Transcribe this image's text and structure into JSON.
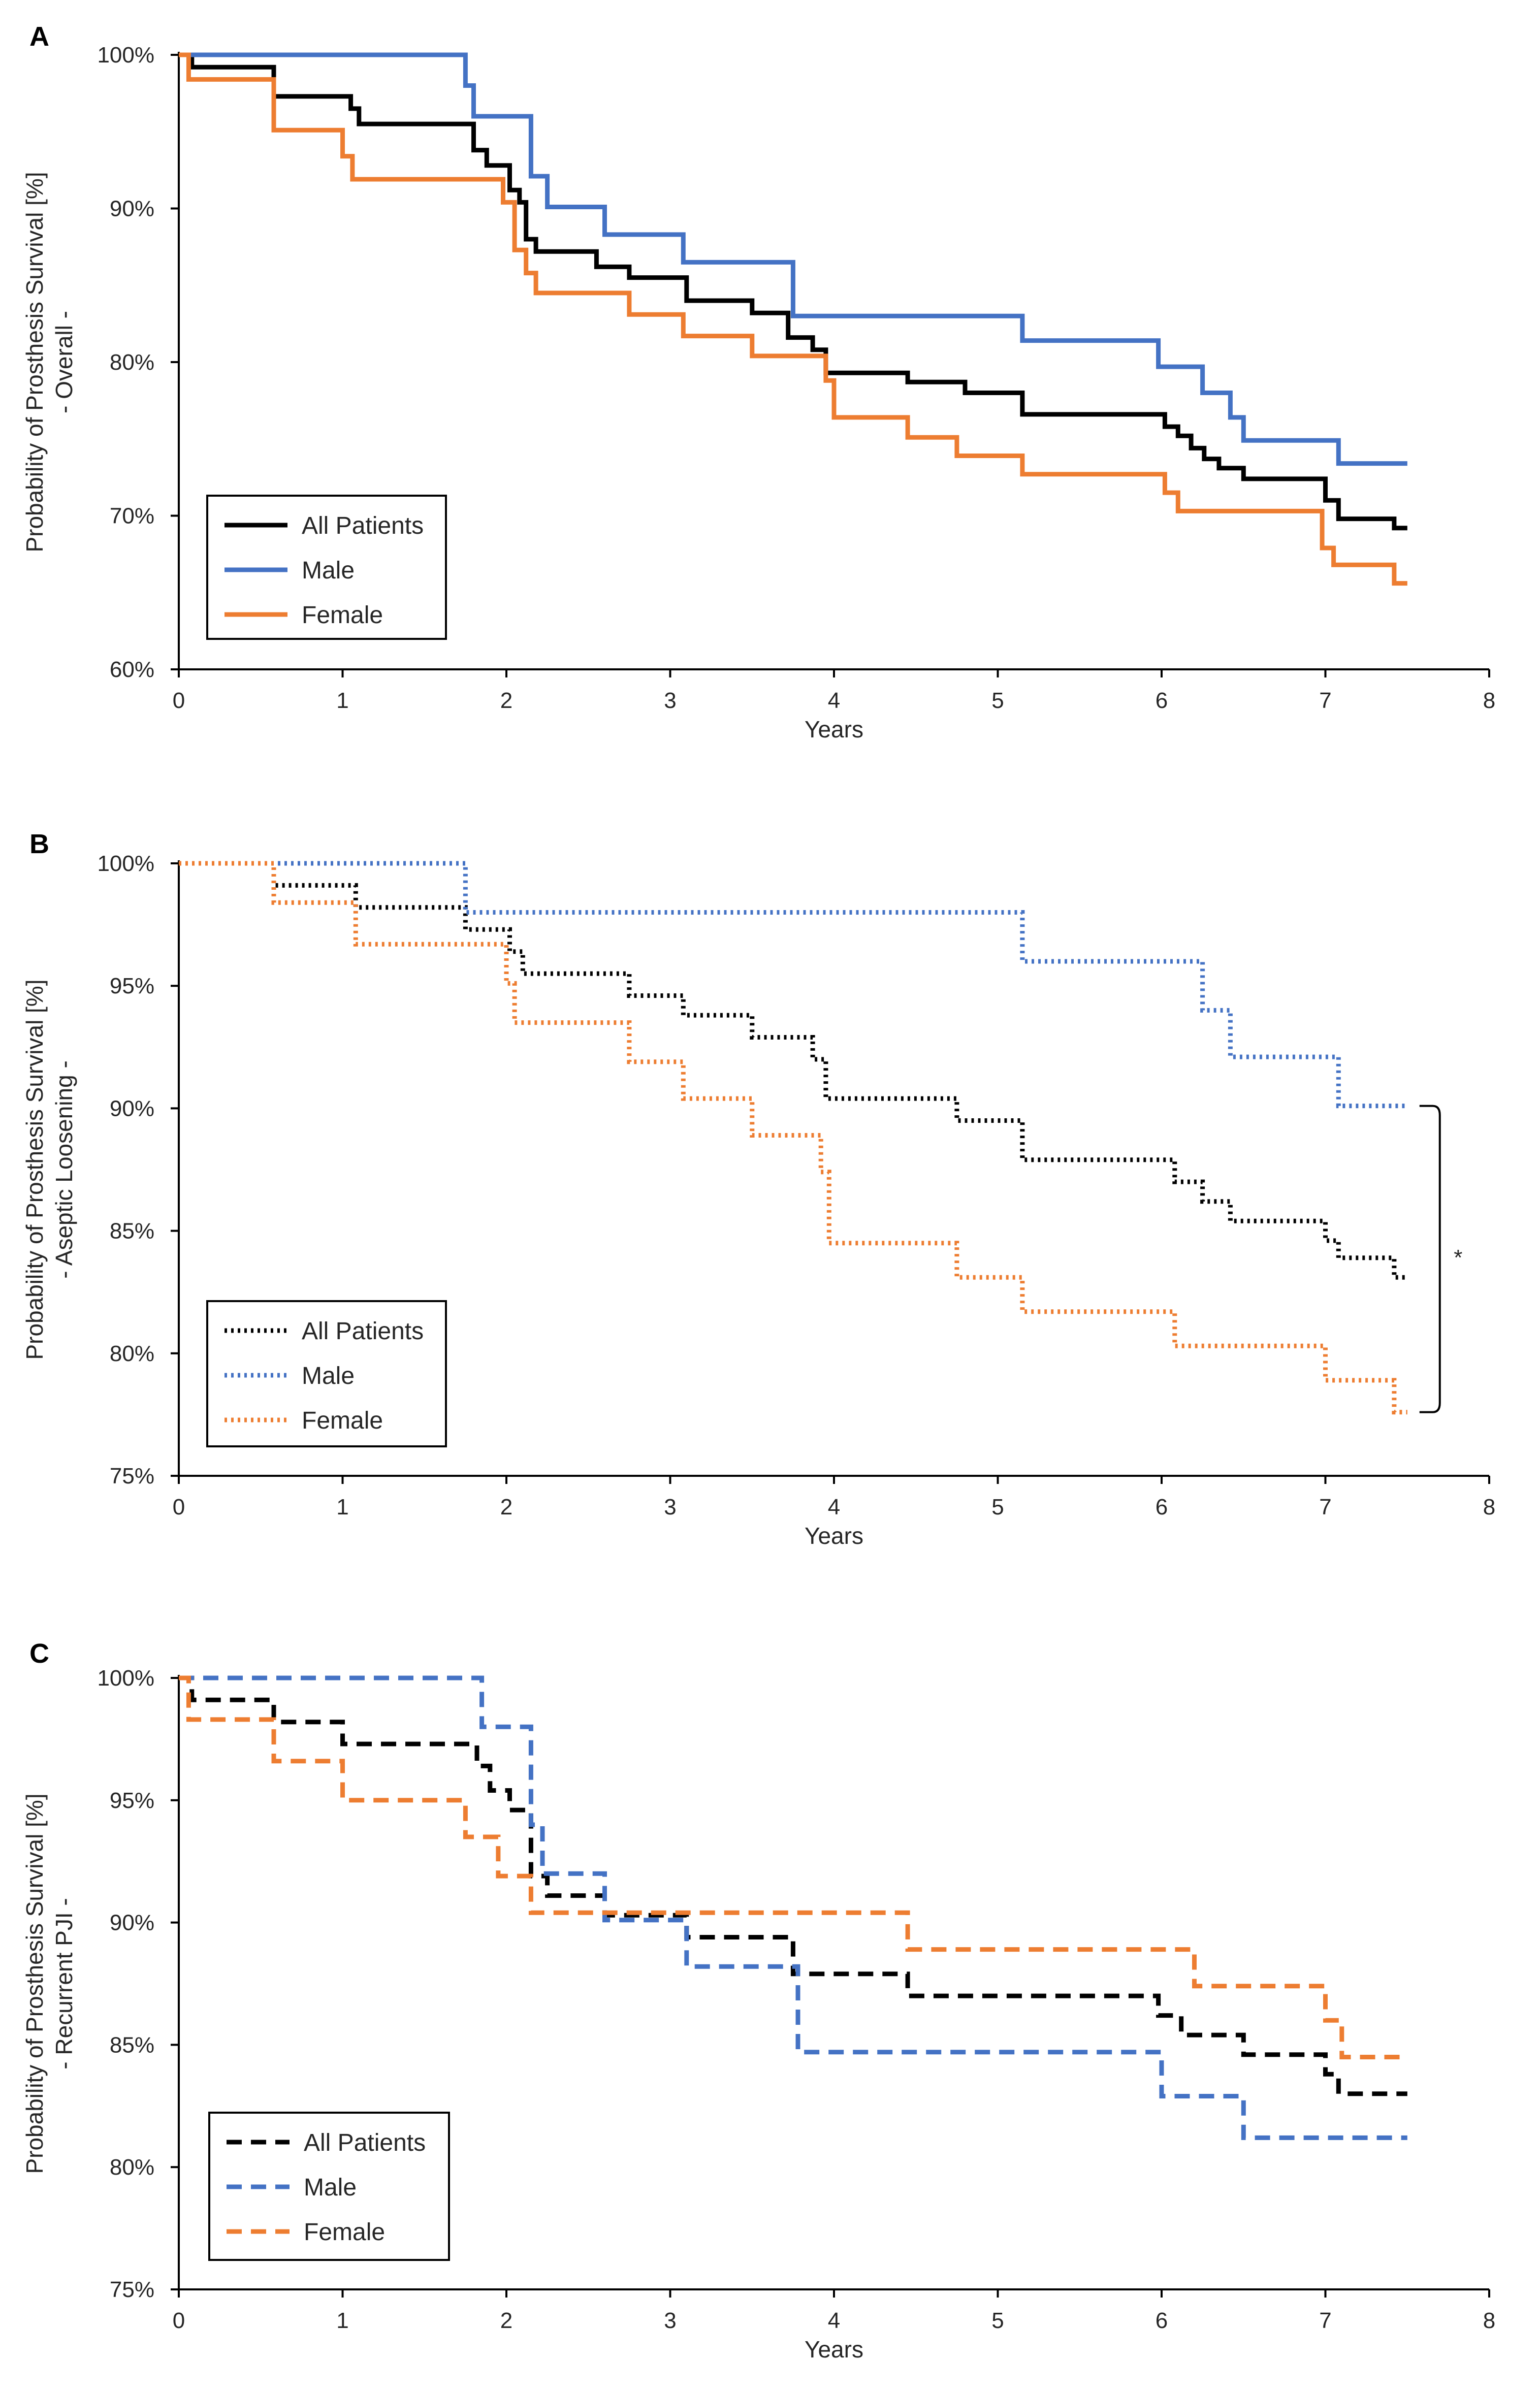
{
  "chart_data": [
    {
      "panel": "A",
      "type": "line",
      "step": true,
      "line_style": "solid",
      "ylabel": "Probability of Prosthesis Survival [%]",
      "ysub": "- Overall -",
      "xlabel": "Years",
      "xlim": [
        0,
        8
      ],
      "ylim": [
        60,
        100
      ],
      "xticks": [
        "0",
        "1",
        "2",
        "3",
        "4",
        "5",
        "6",
        "7",
        "8"
      ],
      "yticks": [
        "60%",
        "70%",
        "80%",
        "90%",
        "100%"
      ],
      "ytick_values": [
        60,
        70,
        80,
        90,
        100
      ],
      "legend": [
        "All Patients",
        "Male",
        "Female"
      ],
      "series": [
        {
          "name": "All Patients",
          "color": "#000000",
          "points": [
            [
              0,
              100
            ],
            [
              0.08,
              99.2
            ],
            [
              0.58,
              97.3
            ],
            [
              1.05,
              96.5
            ],
            [
              1.1,
              95.5
            ],
            [
              1.8,
              93.8
            ],
            [
              1.88,
              92.8
            ],
            [
              2.02,
              91.2
            ],
            [
              2.08,
              90.4
            ],
            [
              2.12,
              88.0
            ],
            [
              2.18,
              87.2
            ],
            [
              2.55,
              86.2
            ],
            [
              2.75,
              85.5
            ],
            [
              3.1,
              84.0
            ],
            [
              3.5,
              83.2
            ],
            [
              3.72,
              81.6
            ],
            [
              3.87,
              80.8
            ],
            [
              3.95,
              79.3
            ],
            [
              4.45,
              78.7
            ],
            [
              4.8,
              78.0
            ],
            [
              5.15,
              76.6
            ],
            [
              6.02,
              75.8
            ],
            [
              6.1,
              75.2
            ],
            [
              6.18,
              74.4
            ],
            [
              6.26,
              73.7
            ],
            [
              6.35,
              73.1
            ],
            [
              6.5,
              72.4
            ],
            [
              7.0,
              71.0
            ],
            [
              7.08,
              69.8
            ],
            [
              7.42,
              69.2
            ],
            [
              7.5,
              69.2
            ]
          ]
        },
        {
          "name": "Male",
          "color": "#4472C4",
          "points": [
            [
              0,
              100
            ],
            [
              1.75,
              98.0
            ],
            [
              1.8,
              96.0
            ],
            [
              2.15,
              92.1
            ],
            [
              2.25,
              90.1
            ],
            [
              2.6,
              88.3
            ],
            [
              3.08,
              86.5
            ],
            [
              3.75,
              83.0
            ],
            [
              5.15,
              81.4
            ],
            [
              5.98,
              79.7
            ],
            [
              6.25,
              78.0
            ],
            [
              6.42,
              76.4
            ],
            [
              6.5,
              74.9
            ],
            [
              7.08,
              73.4
            ],
            [
              7.5,
              73.4
            ]
          ]
        },
        {
          "name": "Female",
          "color": "#ED7D31",
          "points": [
            [
              0,
              100
            ],
            [
              0.06,
              98.4
            ],
            [
              0.58,
              95.1
            ],
            [
              1.0,
              93.4
            ],
            [
              1.06,
              91.9
            ],
            [
              1.98,
              90.4
            ],
            [
              2.05,
              87.3
            ],
            [
              2.12,
              85.8
            ],
            [
              2.18,
              84.5
            ],
            [
              2.75,
              83.1
            ],
            [
              3.08,
              81.7
            ],
            [
              3.5,
              80.4
            ],
            [
              3.95,
              78.8
            ],
            [
              4.0,
              76.4
            ],
            [
              4.45,
              75.1
            ],
            [
              4.75,
              73.9
            ],
            [
              5.15,
              72.7
            ],
            [
              6.02,
              71.5
            ],
            [
              6.1,
              70.3
            ],
            [
              6.98,
              67.9
            ],
            [
              7.05,
              66.8
            ],
            [
              7.42,
              65.6
            ],
            [
              7.5,
              65.6
            ]
          ]
        }
      ]
    },
    {
      "panel": "B",
      "type": "line",
      "step": true,
      "line_style": "dotted",
      "ylabel": "Probability of Prosthesis Survival [%]",
      "ysub": "- Aseptic Loosening -",
      "xlabel": "Years",
      "xlim": [
        0,
        8
      ],
      "ylim": [
        75,
        100
      ],
      "xticks": [
        "0",
        "1",
        "2",
        "3",
        "4",
        "5",
        "6",
        "7",
        "8"
      ],
      "yticks": [
        "75%",
        "80%",
        "85%",
        "90%",
        "95%",
        "100%"
      ],
      "ytick_values": [
        75,
        80,
        85,
        90,
        95,
        100
      ],
      "legend": [
        "All Patients",
        "Male",
        "Female"
      ],
      "significance": "*",
      "series": [
        {
          "name": "All Patients",
          "color": "#000000",
          "points": [
            [
              0,
              100
            ],
            [
              0.58,
              99.1
            ],
            [
              1.08,
              98.2
            ],
            [
              1.75,
              97.3
            ],
            [
              2.02,
              96.4
            ],
            [
              2.1,
              95.5
            ],
            [
              2.75,
              94.6
            ],
            [
              3.08,
              93.8
            ],
            [
              3.5,
              92.9
            ],
            [
              3.87,
              92.0
            ],
            [
              3.95,
              90.4
            ],
            [
              4.75,
              89.5
            ],
            [
              5.15,
              87.9
            ],
            [
              6.08,
              87.0
            ],
            [
              6.25,
              86.2
            ],
            [
              6.42,
              85.4
            ],
            [
              7.0,
              84.6
            ],
            [
              7.08,
              83.9
            ],
            [
              7.42,
              83.1
            ],
            [
              7.5,
              83.1
            ]
          ]
        },
        {
          "name": "Male",
          "color": "#4472C4",
          "points": [
            [
              0,
              100
            ],
            [
              1.75,
              98.0
            ],
            [
              5.15,
              96.0
            ],
            [
              6.25,
              94.0
            ],
            [
              6.42,
              92.1
            ],
            [
              7.08,
              90.1
            ],
            [
              7.5,
              90.1
            ]
          ]
        },
        {
          "name": "Female",
          "color": "#ED7D31",
          "points": [
            [
              0,
              100
            ],
            [
              0.58,
              98.4
            ],
            [
              1.08,
              96.7
            ],
            [
              2.0,
              95.1
            ],
            [
              2.05,
              93.5
            ],
            [
              2.75,
              91.9
            ],
            [
              3.08,
              90.4
            ],
            [
              3.5,
              88.9
            ],
            [
              3.92,
              87.4
            ],
            [
              3.97,
              84.5
            ],
            [
              4.75,
              83.1
            ],
            [
              5.15,
              81.7
            ],
            [
              6.08,
              80.3
            ],
            [
              7.0,
              78.9
            ],
            [
              7.42,
              77.6
            ],
            [
              7.5,
              77.6
            ]
          ]
        }
      ]
    },
    {
      "panel": "C",
      "type": "line",
      "step": true,
      "line_style": "dashed",
      "ylabel": "Probability of Prosthesis Survival [%]",
      "ysub": "- Recurrent PJI -",
      "xlabel": "Years",
      "xlim": [
        0,
        8
      ],
      "ylim": [
        75,
        100
      ],
      "xticks": [
        "0",
        "1",
        "2",
        "3",
        "4",
        "5",
        "6",
        "7",
        "8"
      ],
      "yticks": [
        "75%",
        "80%",
        "85%",
        "90%",
        "95%",
        "100%"
      ],
      "ytick_values": [
        75,
        80,
        85,
        90,
        95,
        100
      ],
      "legend": [
        "All Patients",
        "Male",
        "Female"
      ],
      "series": [
        {
          "name": "All Patients",
          "color": "#000000",
          "points": [
            [
              0,
              100
            ],
            [
              0.08,
              99.1
            ],
            [
              0.58,
              98.2
            ],
            [
              1.0,
              97.3
            ],
            [
              1.82,
              96.4
            ],
            [
              1.9,
              95.4
            ],
            [
              2.02,
              94.6
            ],
            [
              2.15,
              91.9
            ],
            [
              2.25,
              91.1
            ],
            [
              2.6,
              90.3
            ],
            [
              3.1,
              89.4
            ],
            [
              3.75,
              87.9
            ],
            [
              4.45,
              87.0
            ],
            [
              5.98,
              86.2
            ],
            [
              6.12,
              85.4
            ],
            [
              6.5,
              84.6
            ],
            [
              7.0,
              83.8
            ],
            [
              7.08,
              83.0
            ],
            [
              7.5,
              83.0
            ]
          ]
        },
        {
          "name": "Male",
          "color": "#4472C4",
          "points": [
            [
              0,
              100
            ],
            [
              1.85,
              98.0
            ],
            [
              2.15,
              94.0
            ],
            [
              2.22,
              92.0
            ],
            [
              2.6,
              90.1
            ],
            [
              3.1,
              88.2
            ],
            [
              3.78,
              84.7
            ],
            [
              6.0,
              82.9
            ],
            [
              6.5,
              81.2
            ],
            [
              7.5,
              81.2
            ]
          ]
        },
        {
          "name": "Female",
          "color": "#ED7D31",
          "points": [
            [
              0,
              100
            ],
            [
              0.06,
              98.3
            ],
            [
              0.58,
              96.6
            ],
            [
              1.0,
              95.0
            ],
            [
              1.75,
              93.5
            ],
            [
              1.95,
              91.9
            ],
            [
              2.15,
              90.4
            ],
            [
              4.45,
              88.9
            ],
            [
              6.2,
              87.4
            ],
            [
              7.0,
              86.0
            ],
            [
              7.1,
              84.5
            ],
            [
              7.5,
              84.5
            ]
          ]
        }
      ]
    }
  ]
}
